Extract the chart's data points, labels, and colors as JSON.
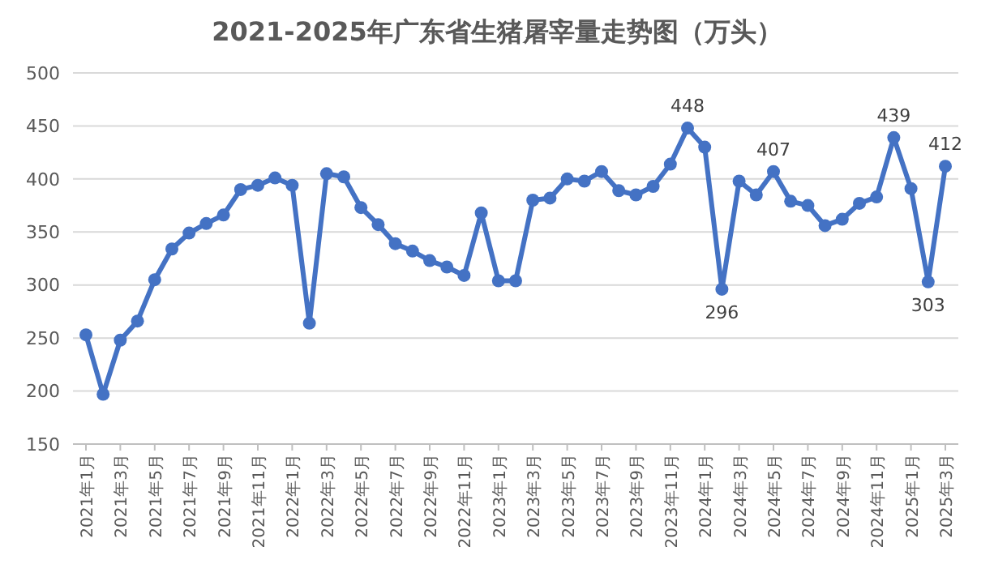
{
  "chart_data": {
    "type": "line",
    "title": "2021-2025年广东省生猪屠宰量走势图（万头）",
    "categories": [
      "2021年1月",
      null,
      "2021年3月",
      null,
      "2021年5月",
      null,
      "2021年7月",
      null,
      "2021年9月",
      null,
      "2021年11月",
      null,
      "2022年1月",
      null,
      "2022年3月",
      null,
      "2022年5月",
      null,
      "2022年7月",
      null,
      "2022年9月",
      null,
      "2022年11月",
      null,
      "2023年1月",
      null,
      "2023年3月",
      null,
      "2023年5月",
      null,
      "2023年7月",
      null,
      "2023年9月",
      null,
      "2023年11月",
      null,
      "2024年1月",
      null,
      "2024年3月",
      null,
      "2024年5月",
      null,
      "2024年7月",
      null,
      "2024年9月",
      null,
      "2024年11月",
      null,
      "2025年1月",
      null,
      "2025年3月"
    ],
    "series": [
      {
        "color": "#4472c4",
        "values": [
          253,
          197,
          248,
          266,
          305,
          334,
          349,
          358,
          366,
          390,
          394,
          401,
          394,
          264,
          405,
          402,
          373,
          357,
          339,
          332,
          323,
          317,
          309,
          368,
          304,
          304,
          380,
          382,
          400,
          398,
          407,
          389,
          385,
          393,
          414,
          448,
          430,
          296,
          398,
          385,
          407,
          379,
          375,
          356,
          362,
          377,
          383,
          439,
          391,
          303,
          412
        ],
        "value_labels": [
          null,
          null,
          null,
          null,
          null,
          null,
          null,
          null,
          null,
          null,
          null,
          null,
          null,
          null,
          null,
          null,
          null,
          null,
          null,
          null,
          null,
          null,
          null,
          null,
          null,
          null,
          null,
          null,
          null,
          null,
          null,
          null,
          null,
          null,
          null,
          "448",
          null,
          "296",
          null,
          null,
          "407",
          null,
          null,
          null,
          null,
          null,
          null,
          "439",
          null,
          "303",
          "412"
        ]
      }
    ],
    "ylim": [
      150,
      500
    ],
    "yticks": [
      150,
      200,
      250,
      300,
      350,
      400,
      450,
      500
    ],
    "grid": "y",
    "marker": "circle",
    "line_style": "solid"
  }
}
